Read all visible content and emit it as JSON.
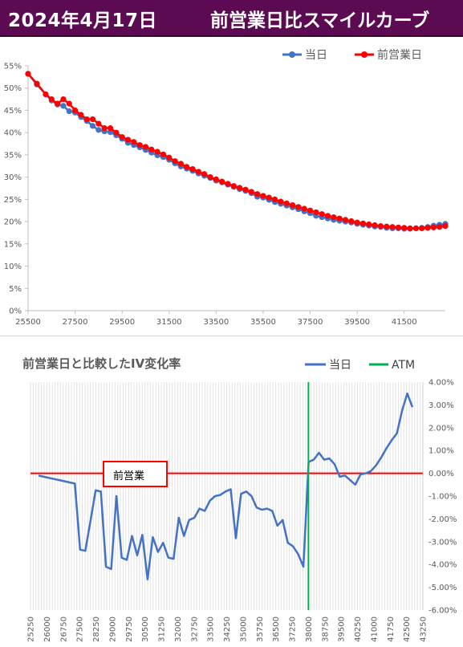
{
  "header": {
    "date": "2024年4月17日",
    "title": "前営業日比スマイルカーブ"
  },
  "chart_data": [
    {
      "type": "line",
      "title": "",
      "xlabel": "",
      "ylabel": "",
      "x_ticks": [
        "25500",
        "27500",
        "29500",
        "31500",
        "33500",
        "35500",
        "37500",
        "39500",
        "41500"
      ],
      "y_ticks": [
        "0%",
        "5%",
        "10%",
        "15%",
        "20%",
        "25%",
        "30%",
        "35%",
        "40%",
        "45%",
        "50%",
        "55%"
      ],
      "xlim": [
        25500,
        43250
      ],
      "ylim": [
        0,
        55
      ],
      "grid": false,
      "legend_position": "top-right",
      "series": [
        {
          "name": "当日",
          "color": "#4472c4",
          "marker": "circle",
          "points": [
            [
              25500,
              53.2
            ],
            [
              25875,
              50.8
            ],
            [
              26250,
              48.6
            ],
            [
              26500,
              47.2
            ],
            [
              26750,
              46.3
            ],
            [
              27000,
              46.0
            ],
            [
              27250,
              44.8
            ],
            [
              27500,
              44.5
            ],
            [
              27750,
              43.5
            ],
            [
              28000,
              42.6
            ],
            [
              28250,
              41.5
            ],
            [
              28500,
              40.6
            ],
            [
              28750,
              40.3
            ],
            [
              29000,
              40.1
            ],
            [
              29250,
              39.4
            ],
            [
              29500,
              38.6
            ],
            [
              29750,
              37.7
            ],
            [
              30000,
              37.2
            ],
            [
              30250,
              36.7
            ],
            [
              30500,
              36.1
            ],
            [
              30750,
              35.5
            ],
            [
              31000,
              34.9
            ],
            [
              31250,
              34.5
            ],
            [
              31500,
              33.9
            ],
            [
              31750,
              33.1
            ],
            [
              32000,
              32.4
            ],
            [
              32250,
              31.9
            ],
            [
              32500,
              31.4
            ],
            [
              32750,
              30.8
            ],
            [
              33000,
              30.3
            ],
            [
              33250,
              29.8
            ],
            [
              33500,
              29.2
            ],
            [
              33750,
              28.8
            ],
            [
              34000,
              28.3
            ],
            [
              34250,
              27.8
            ],
            [
              34500,
              27.3
            ],
            [
              34750,
              26.9
            ],
            [
              35000,
              26.4
            ],
            [
              35250,
              25.6
            ],
            [
              35500,
              25.4
            ],
            [
              35750,
              24.9
            ],
            [
              36000,
              24.4
            ],
            [
              36250,
              24.0
            ],
            [
              36500,
              23.6
            ],
            [
              36750,
              23.2
            ],
            [
              37000,
              22.8
            ],
            [
              37250,
              22.3
            ],
            [
              37500,
              21.9
            ],
            [
              37750,
              21.3
            ],
            [
              38000,
              21.0
            ],
            [
              38250,
              20.7
            ],
            [
              38500,
              20.4
            ],
            [
              38750,
              20.2
            ],
            [
              39000,
              20.0
            ],
            [
              39250,
              19.8
            ],
            [
              39500,
              19.5
            ],
            [
              39750,
              19.3
            ],
            [
              40000,
              19.1
            ],
            [
              40250,
              18.9
            ],
            [
              40500,
              18.8
            ],
            [
              40750,
              18.6
            ],
            [
              41000,
              18.5
            ],
            [
              41250,
              18.5
            ],
            [
              41500,
              18.4
            ],
            [
              41750,
              18.4
            ],
            [
              42000,
              18.5
            ],
            [
              42250,
              18.6
            ],
            [
              42500,
              18.8
            ],
            [
              42750,
              19.1
            ],
            [
              43000,
              19.3
            ],
            [
              43250,
              19.5
            ]
          ]
        },
        {
          "name": "前営業日",
          "color": "#ff0000",
          "marker": "circle",
          "points": [
            [
              25500,
              53.2
            ],
            [
              25875,
              51.0
            ],
            [
              26250,
              48.6
            ],
            [
              26500,
              47.5
            ],
            [
              26750,
              46.5
            ],
            [
              27000,
              47.5
            ],
            [
              27250,
              46.5
            ],
            [
              27500,
              45.0
            ],
            [
              27750,
              44.0
            ],
            [
              28000,
              43.0
            ],
            [
              28250,
              43.0
            ],
            [
              28500,
              42.0
            ],
            [
              28750,
              41.0
            ],
            [
              29000,
              41.0
            ],
            [
              29250,
              40.0
            ],
            [
              29500,
              39.0
            ],
            [
              29750,
              38.4
            ],
            [
              30000,
              37.9
            ],
            [
              30250,
              37.2
            ],
            [
              30500,
              36.8
            ],
            [
              30750,
              36.2
            ],
            [
              31000,
              35.7
            ],
            [
              31250,
              35.1
            ],
            [
              31500,
              34.4
            ],
            [
              31750,
              33.6
            ],
            [
              32000,
              33.0
            ],
            [
              32250,
              32.3
            ],
            [
              32500,
              31.8
            ],
            [
              32750,
              31.2
            ],
            [
              33000,
              30.7
            ],
            [
              33250,
              30.0
            ],
            [
              33500,
              29.5
            ],
            [
              33750,
              29.0
            ],
            [
              34000,
              28.5
            ],
            [
              34250,
              28.0
            ],
            [
              34500,
              27.6
            ],
            [
              34750,
              27.2
            ],
            [
              35000,
              26.7
            ],
            [
              35250,
              26.2
            ],
            [
              35500,
              25.8
            ],
            [
              35750,
              25.4
            ],
            [
              36000,
              25.0
            ],
            [
              36250,
              24.5
            ],
            [
              36500,
              24.1
            ],
            [
              36750,
              23.7
            ],
            [
              37000,
              23.3
            ],
            [
              37250,
              22.9
            ],
            [
              37500,
              22.5
            ],
            [
              37750,
              22.1
            ],
            [
              38000,
              21.7
            ],
            [
              38250,
              21.3
            ],
            [
              38500,
              21.0
            ],
            [
              38750,
              20.7
            ],
            [
              39000,
              20.4
            ],
            [
              39250,
              20.1
            ],
            [
              39500,
              19.8
            ],
            [
              39750,
              19.6
            ],
            [
              40000,
              19.4
            ],
            [
              40250,
              19.2
            ],
            [
              40500,
              19.0
            ],
            [
              40750,
              18.9
            ],
            [
              41000,
              18.8
            ],
            [
              41250,
              18.7
            ],
            [
              41500,
              18.6
            ],
            [
              41750,
              18.5
            ],
            [
              42000,
              18.5
            ],
            [
              42250,
              18.5
            ],
            [
              42500,
              18.6
            ],
            [
              42750,
              18.7
            ],
            [
              43000,
              18.8
            ],
            [
              43250,
              19.0
            ]
          ]
        }
      ]
    },
    {
      "type": "line",
      "title": "前営業日と比較したIV変化率",
      "xlabel": "",
      "ylabel": "",
      "x_ticks": [
        "25250",
        "26000",
        "26750",
        "27500",
        "28250",
        "29000",
        "29750",
        "30500",
        "31250",
        "32000",
        "32750",
        "33500",
        "34250",
        "35000",
        "35750",
        "36500",
        "37250",
        "38000",
        "38750",
        "39500",
        "40250",
        "41000",
        "41750",
        "42500",
        "43250"
      ],
      "y_ticks": [
        "4.00%",
        "3.00%",
        "2.00%",
        "1.00%",
        "0.00%",
        "-1.00%",
        "-2.00%",
        "-3.00%",
        "-4.00%",
        "-5.00%",
        "-6.00%"
      ],
      "ylim": [
        -6,
        4
      ],
      "grid": "vertical",
      "legend_position": "top-right",
      "atm_strike": "38000",
      "annotation": "前営業",
      "series": [
        {
          "name": "当日",
          "color": "#4472c4",
          "values": [
            -0.1,
            -0.15,
            -0.2,
            -0.25,
            -0.3,
            -0.35,
            -0.4,
            -0.45,
            -3.35,
            -3.4,
            -2.1,
            -0.75,
            -0.8,
            -4.1,
            -4.2,
            -1.0,
            -3.7,
            -3.8,
            -2.75,
            -3.6,
            -2.7,
            -4.65,
            -2.8,
            -3.45,
            -3.05,
            -3.7,
            -3.75,
            -1.95,
            -2.75,
            -2.05,
            -1.95,
            -1.55,
            -1.65,
            -1.2,
            -1.0,
            -0.95,
            -0.8,
            -0.7,
            -2.85,
            -0.9,
            -0.8,
            -1.0,
            -1.5,
            -1.6,
            -1.55,
            -1.65,
            -2.3,
            -2.05,
            -3.05,
            -3.2,
            -3.55,
            -4.1,
            0.5,
            0.6,
            0.9,
            0.6,
            0.65,
            0.4,
            -0.15,
            -0.1,
            -0.3,
            -0.5,
            -0.05,
            0.0,
            0.1,
            0.35,
            0.7,
            1.1,
            1.45,
            1.75,
            2.75,
            3.5,
            2.9
          ]
        },
        {
          "name": "ATM",
          "color": "#00b050"
        }
      ]
    }
  ]
}
